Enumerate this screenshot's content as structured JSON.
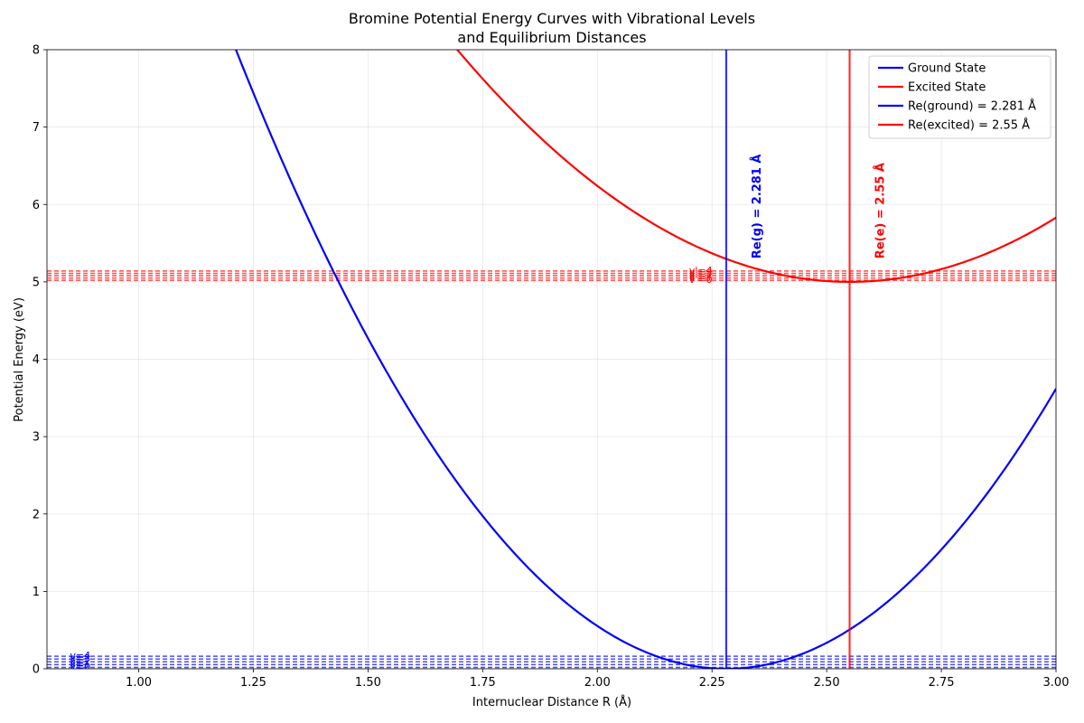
{
  "chart_data": {
    "type": "line",
    "title_line1": "Bromine Potential Energy Curves with Vibrational Levels",
    "title_line2": "and Equilibrium Distances",
    "xlabel": "Internuclear Distance R (Å)",
    "ylabel": "Potential Energy (eV)",
    "xlim": [
      0.8,
      3.0
    ],
    "ylim": [
      0,
      8
    ],
    "xticks": [
      "1.00",
      "1.25",
      "1.50",
      "1.75",
      "2.00",
      "2.25",
      "2.50",
      "2.75",
      "3.00"
    ],
    "yticks": [
      "0",
      "1",
      "2",
      "3",
      "4",
      "5",
      "6",
      "7",
      "8"
    ],
    "grid": true,
    "legend_position": "top-right",
    "series": [
      {
        "name": "Ground State",
        "color": "#0000ff",
        "model": "harmonic",
        "re": 2.281,
        "k": 7.0,
        "offset": 0
      },
      {
        "name": "Excited State",
        "color": "#ff0000",
        "model": "harmonic",
        "re": 2.55,
        "k": 4.1,
        "offset": 5.0
      }
    ],
    "equilibrium_lines": [
      {
        "legend": "Re(ground) = 2.281 Å",
        "annotation": "Re(g) = 2.281 Å",
        "x": 2.281,
        "color": "#0000ff"
      },
      {
        "legend": "Re(excited) = 2.55 Å",
        "annotation": "Re(e) = 2.55 Å",
        "x": 2.55,
        "color": "#ff0000"
      }
    ],
    "vibrational_levels": [
      {
        "state": "ground",
        "color": "#0000ff",
        "label_x": 0.85,
        "energies": [
          0.018,
          0.054,
          0.09,
          0.126,
          0.162
        ],
        "labels": [
          "v=0",
          "v=1",
          "v=2",
          "v=3",
          "v=4"
        ]
      },
      {
        "state": "excited",
        "color": "#ff0000",
        "label_x": 2.2,
        "energies": [
          5.02,
          5.05,
          5.08,
          5.11,
          5.14
        ],
        "labels": [
          "v'=0",
          "v'=1",
          "v'=2",
          "v'=3",
          "v'=4"
        ]
      }
    ]
  }
}
